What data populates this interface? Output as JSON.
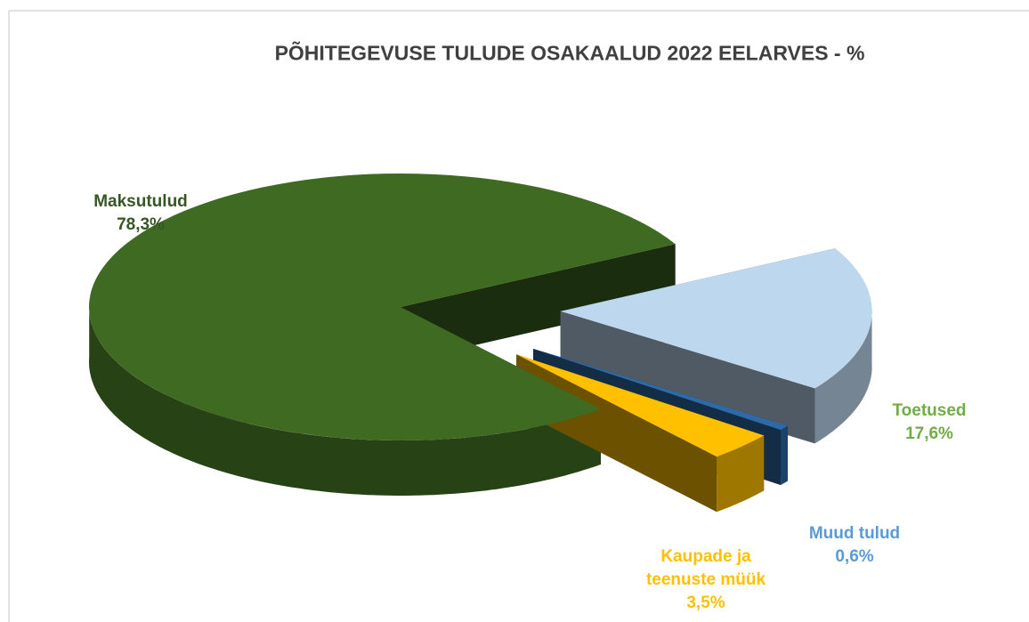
{
  "chart_data": {
    "type": "pie3d",
    "title": "PÕHITEGEVUSE TULUDE OSAKAALUD 2022 EELARVES - %",
    "categories": [
      "Maksutulud",
      "Toetused",
      "Muud tulud",
      "Kaupade ja teenuste müük"
    ],
    "values": [
      78.3,
      17.6,
      0.6,
      3.5
    ],
    "value_labels": [
      "78,3%",
      "17,6%",
      "0,6%",
      "3,5%"
    ],
    "colors": [
      "#3f6a22",
      "#bdd7ee",
      "#2e6aa8",
      "#ffc000"
    ],
    "label_colors": [
      "#375623",
      "#70ad47",
      "#5b9bd5",
      "#ffc000"
    ]
  }
}
